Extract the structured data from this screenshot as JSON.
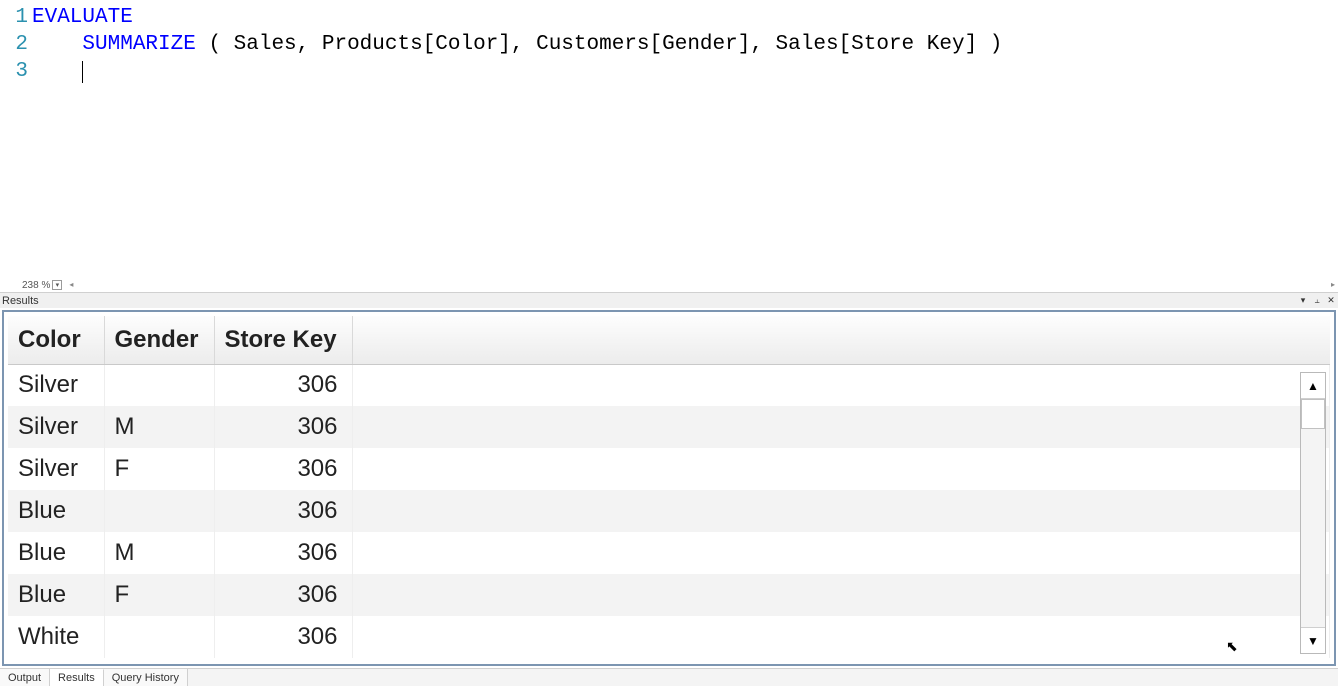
{
  "editor": {
    "lines": [
      {
        "n": "1",
        "tokens": [
          {
            "t": "EVALUATE",
            "cls": "kw"
          }
        ]
      },
      {
        "n": "2",
        "tokens": [
          {
            "t": "    ",
            "cls": ""
          },
          {
            "t": "SUMMARIZE",
            "cls": "kw"
          },
          {
            "t": " ( Sales, Products[Color], Customers[Gender], Sales[Store Key] )",
            "cls": ""
          }
        ]
      },
      {
        "n": "3",
        "tokens": []
      }
    ],
    "zoom": "238 %"
  },
  "results_panel": {
    "title": "Results",
    "columns": [
      "Color",
      "Gender",
      "Store Key"
    ],
    "col_align": [
      "left",
      "left",
      "right"
    ],
    "rows": [
      [
        "Silver",
        "",
        "306"
      ],
      [
        "Silver",
        "M",
        "306"
      ],
      [
        "Silver",
        "F",
        "306"
      ],
      [
        "Blue",
        "",
        "306"
      ],
      [
        "Blue",
        "M",
        "306"
      ],
      [
        "Blue",
        "F",
        "306"
      ],
      [
        "White",
        "",
        "306"
      ]
    ],
    "scrollbar_glyphs": {
      "up": "▲",
      "down": "▼"
    }
  },
  "bottom_tabs": {
    "items": [
      "Output",
      "Results",
      "Query History"
    ],
    "active_index": 1
  },
  "panel_buttons": {
    "menu": "▾",
    "pin": "⫠",
    "close": "✕"
  },
  "hscroll_glyphs": {
    "left": "◂",
    "right": "▸"
  },
  "colors": {
    "keyword": "#0000ff",
    "gutter": "#2b91af",
    "results_border": "#7c95b1",
    "row_alt": "#f3f3f3"
  }
}
